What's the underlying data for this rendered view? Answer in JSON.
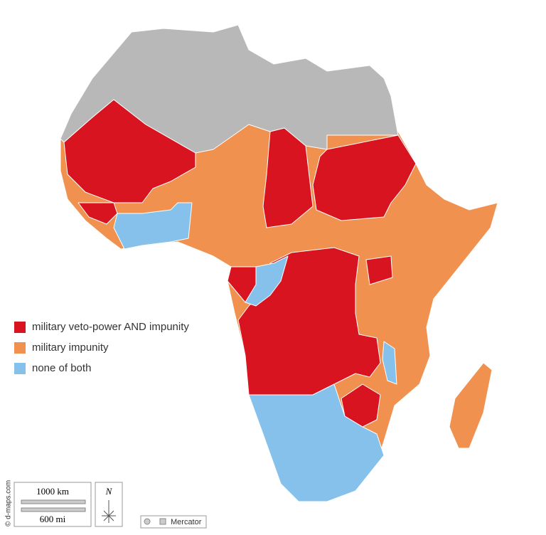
{
  "legend": {
    "items": [
      {
        "label": "military veto-power AND impunity",
        "color": "#d7141f"
      },
      {
        "label": "military impunity",
        "color": "#f0914f"
      },
      {
        "label": "none of both",
        "color": "#85c1ea"
      }
    ]
  },
  "scale": {
    "km": "1000 km",
    "mi": "600 mi"
  },
  "compass": "N",
  "projection": "Mercator",
  "credit": "© d-maps.com"
}
